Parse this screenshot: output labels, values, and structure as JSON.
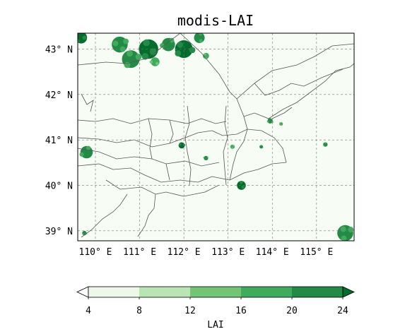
{
  "title": "modis-LAI",
  "map": {
    "lon_range": [
      109.6,
      115.85
    ],
    "lat_range": [
      38.78,
      43.35
    ],
    "xticks": [
      {
        "value": 110,
        "label": "110° E"
      },
      {
        "value": 111,
        "label": "111° E"
      },
      {
        "value": 112,
        "label": "112° E"
      },
      {
        "value": 113,
        "label": "113° E"
      },
      {
        "value": 114,
        "label": "114° E"
      },
      {
        "value": 115,
        "label": "115° E"
      }
    ],
    "yticks": [
      {
        "value": 39,
        "label": "39° N"
      },
      {
        "value": 40,
        "label": "40° N"
      },
      {
        "value": 41,
        "label": "41° N"
      },
      {
        "value": 42,
        "label": "42° N"
      },
      {
        "value": 43,
        "label": "43° N"
      }
    ],
    "gridlines": true,
    "background_color": "#f7fcf5",
    "boundary_color": "#555555"
  },
  "colorbar": {
    "label": "LAI",
    "ticks": [
      4,
      8,
      12,
      16,
      20,
      24
    ],
    "colors": [
      "#edf8e9",
      "#bae4b3",
      "#74c476",
      "#41ab5d",
      "#238b45",
      "#006d2c"
    ],
    "extend": "both"
  },
  "lai_patches": [
    {
      "lon": 109.68,
      "lat": 43.25,
      "r": 0.13,
      "level": 5
    },
    {
      "lon": 110.55,
      "lat": 43.1,
      "r": 0.18,
      "level": 4
    },
    {
      "lon": 111.2,
      "lat": 43.0,
      "r": 0.22,
      "level": 5
    },
    {
      "lon": 111.65,
      "lat": 43.1,
      "r": 0.15,
      "level": 4
    },
    {
      "lon": 112.0,
      "lat": 43.0,
      "r": 0.2,
      "level": 5
    },
    {
      "lon": 112.35,
      "lat": 43.25,
      "r": 0.12,
      "level": 4
    },
    {
      "lon": 110.8,
      "lat": 42.78,
      "r": 0.2,
      "level": 4
    },
    {
      "lon": 111.35,
      "lat": 42.72,
      "r": 0.1,
      "level": 3
    },
    {
      "lon": 112.5,
      "lat": 42.85,
      "r": 0.07,
      "level": 3
    },
    {
      "lon": 109.8,
      "lat": 40.73,
      "r": 0.14,
      "level": 4
    },
    {
      "lon": 111.95,
      "lat": 40.88,
      "r": 0.07,
      "level": 5
    },
    {
      "lon": 113.3,
      "lat": 40.0,
      "r": 0.1,
      "level": 5
    },
    {
      "lon": 115.65,
      "lat": 38.95,
      "r": 0.18,
      "level": 4
    },
    {
      "lon": 113.95,
      "lat": 41.42,
      "r": 0.06,
      "level": 4
    },
    {
      "lon": 114.2,
      "lat": 41.35,
      "r": 0.04,
      "level": 3
    },
    {
      "lon": 115.2,
      "lat": 40.9,
      "r": 0.05,
      "level": 4
    },
    {
      "lon": 112.5,
      "lat": 40.6,
      "r": 0.05,
      "level": 4
    },
    {
      "lon": 113.75,
      "lat": 40.85,
      "r": 0.04,
      "level": 4
    },
    {
      "lon": 113.1,
      "lat": 40.85,
      "r": 0.05,
      "level": 3
    },
    {
      "lon": 109.75,
      "lat": 38.95,
      "r": 0.05,
      "level": 4
    }
  ]
}
